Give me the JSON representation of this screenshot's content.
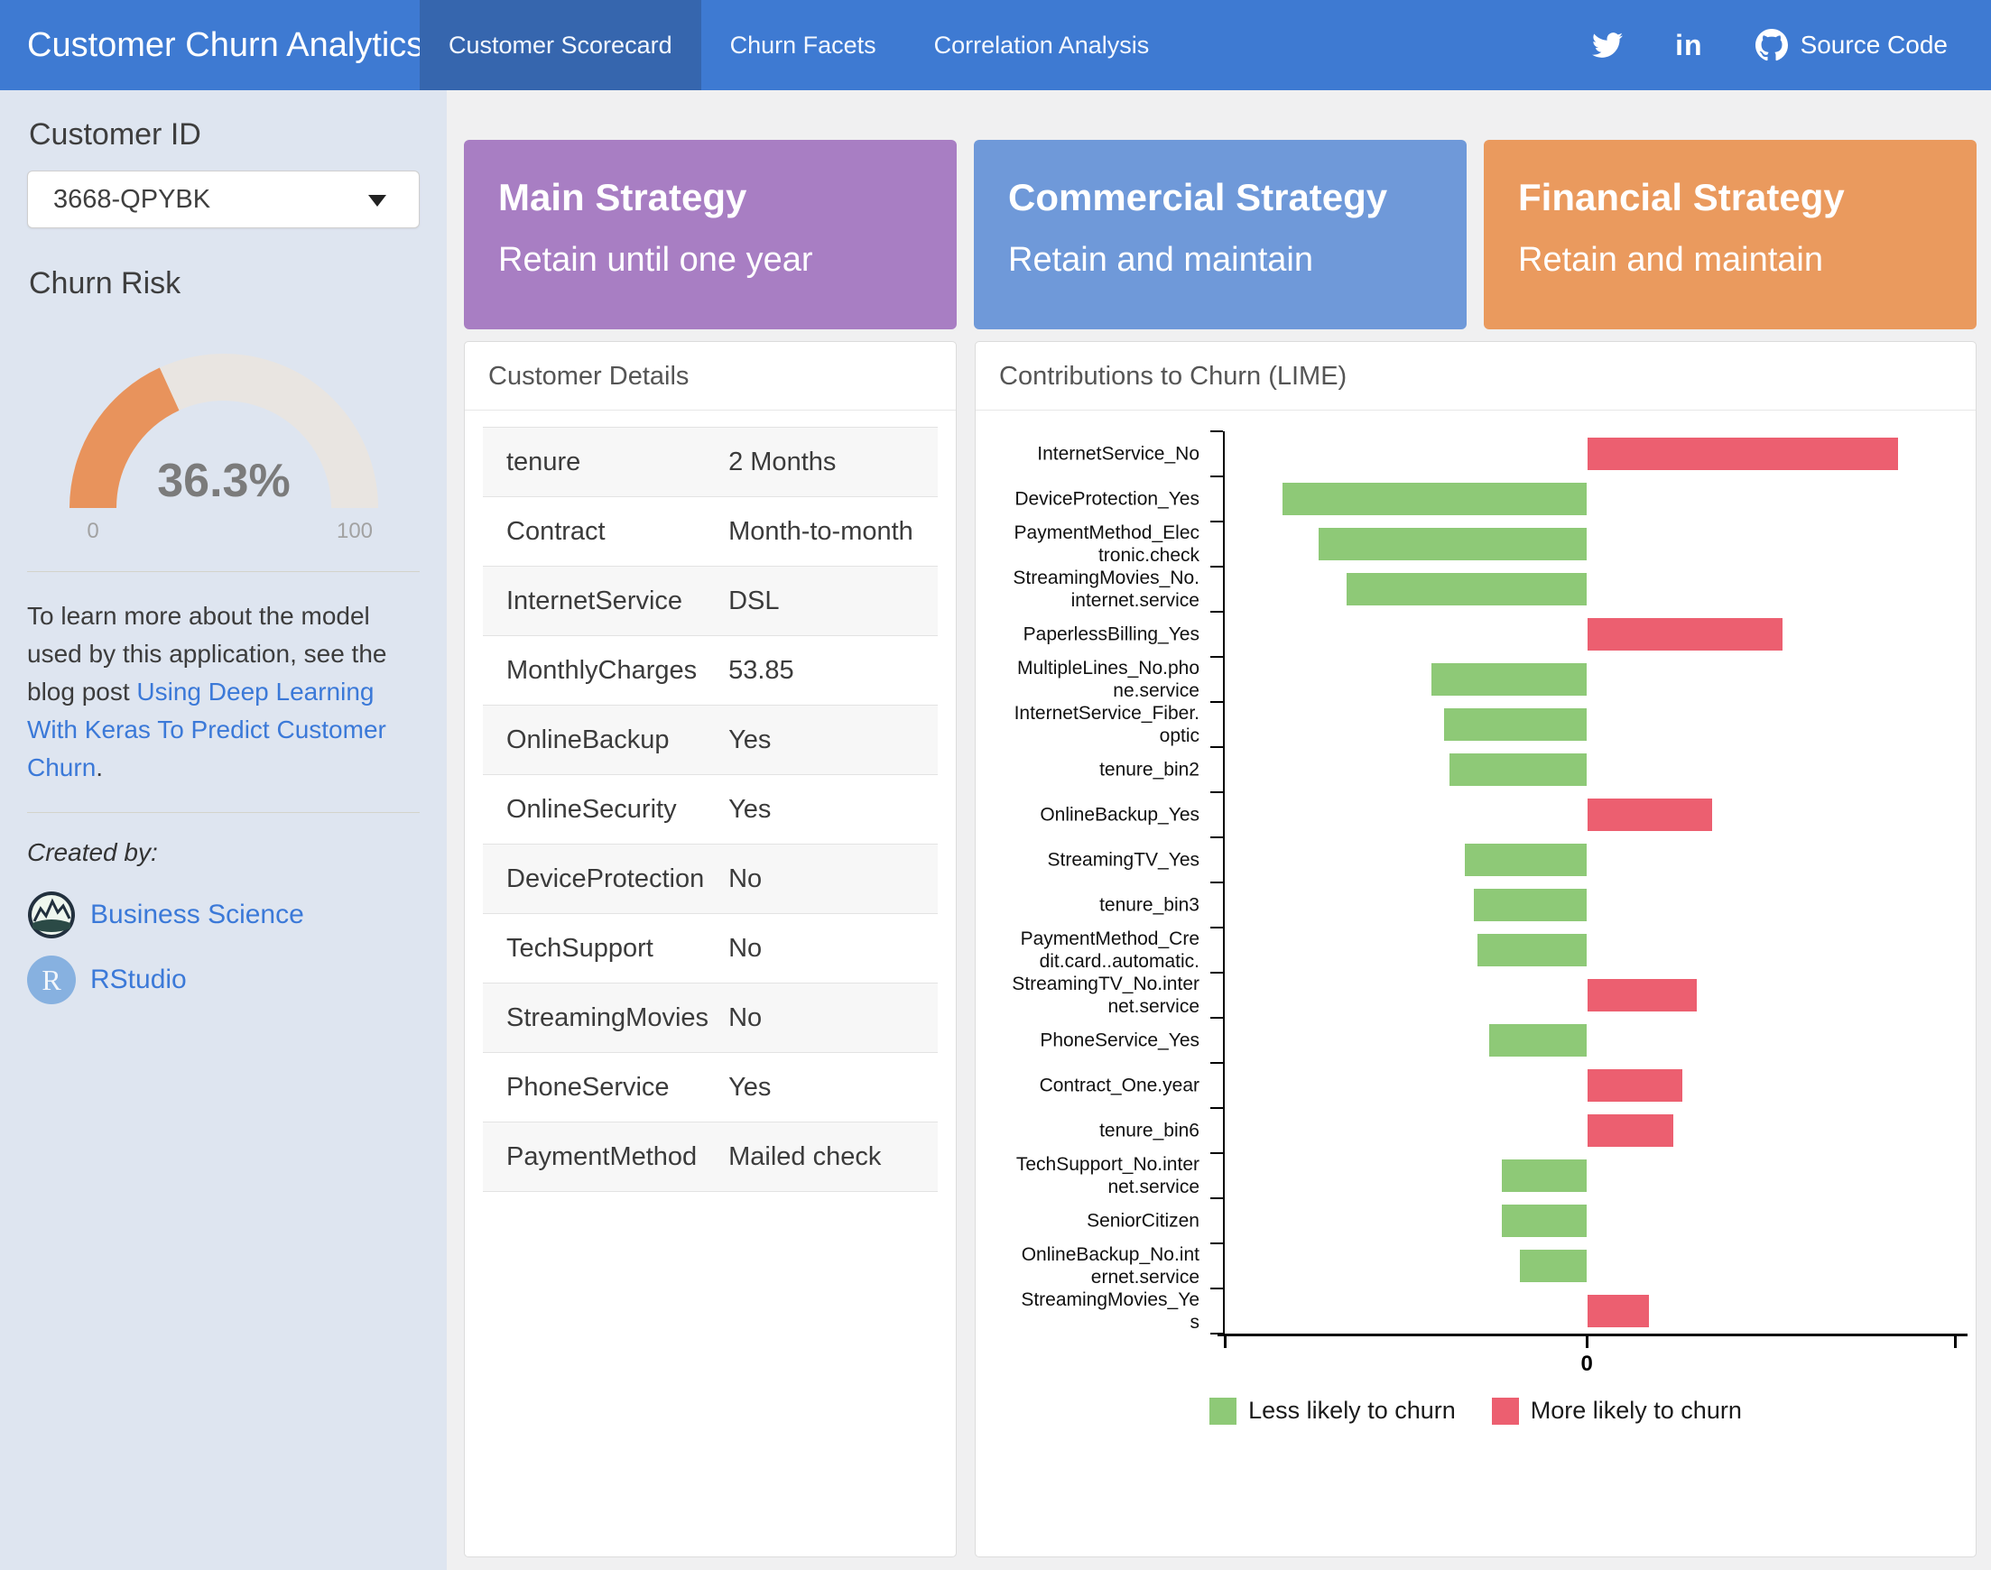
{
  "navbar": {
    "title": "Customer Churn Analytics",
    "tabs": [
      {
        "label": "Customer Scorecard",
        "active": true
      },
      {
        "label": "Churn Facets",
        "active": false
      },
      {
        "label": "Correlation Analysis",
        "active": false
      }
    ],
    "source_code_label": "Source Code",
    "colors": {
      "bar": "#3e7ad2",
      "active_tab": "#3666ae"
    }
  },
  "sidebar": {
    "customer_id_label": "Customer ID",
    "customer_id_value": "3668-QPYBK",
    "churn_risk_label": "Churn Risk",
    "gauge": {
      "value": 36.3,
      "display": "36.3%",
      "min_label": "0",
      "max_label": "100",
      "fill_color": "#e8935c",
      "track_color": "#e9e5e1"
    },
    "about": {
      "text_before": "To learn more about the model used by this application, see the blog post ",
      "link_text": "Using Deep Learning With Keras To Predict Customer Churn",
      "text_after": "."
    },
    "created_by_label": "Created by:",
    "credits": [
      {
        "name": "Business Science",
        "icon": "business-science-logo"
      },
      {
        "name": "RStudio",
        "icon": "rstudio-logo"
      }
    ],
    "link_color": "#3b79d8"
  },
  "strategies": [
    {
      "title": "Main Strategy",
      "subtitle": "Retain until one year",
      "color": "#a87ec3"
    },
    {
      "title": "Commercial Strategy",
      "subtitle": "Retain and maintain",
      "color": "#6f99d9"
    },
    {
      "title": "Financial Strategy",
      "subtitle": "Retain and maintain",
      "color": "#ea9a5e"
    }
  ],
  "customer_details": {
    "title": "Customer Details",
    "rows": [
      {
        "field": "tenure",
        "value": "2 Months"
      },
      {
        "field": "Contract",
        "value": "Month-to-month"
      },
      {
        "field": "InternetService",
        "value": "DSL"
      },
      {
        "field": "MonthlyCharges",
        "value": "53.85"
      },
      {
        "field": "OnlineBackup",
        "value": "Yes"
      },
      {
        "field": "OnlineSecurity",
        "value": "Yes"
      },
      {
        "field": "DeviceProtection",
        "value": "No"
      },
      {
        "field": "TechSupport",
        "value": "No"
      },
      {
        "field": "StreamingMovies",
        "value": "No"
      },
      {
        "field": "PhoneService",
        "value": "Yes"
      },
      {
        "field": "PaymentMethod",
        "value": "Mailed check"
      }
    ]
  },
  "lime_panel": {
    "title": "Contributions to Churn (LIME)"
  },
  "chart_data": {
    "type": "bar",
    "orientation": "horizontal",
    "title": "Contributions to Churn (LIME)",
    "categories": [
      "InternetService_No",
      "DeviceProtection_Yes",
      "PaymentMethod_Electronic.check",
      "StreamingMovies_No.internet.service",
      "PaperlessBilling_Yes",
      "MultipleLines_No.phone.service",
      "InternetService_Fiber.optic",
      "tenure_bin2",
      "OnlineBackup_Yes",
      "StreamingTV_Yes",
      "tenure_bin3",
      "PaymentMethod_Credit.card..automatic.",
      "StreamingTV_No.internet.service",
      "PhoneService_Yes",
      "Contract_One.year",
      "tenure_bin6",
      "TechSupport_No.internet.service",
      "SeniorCitizen",
      "OnlineBackup_No.internet.service",
      "StreamingMovies_Yes"
    ],
    "values": [
      0.102,
      -0.1,
      -0.088,
      -0.079,
      0.064,
      -0.051,
      -0.047,
      -0.045,
      0.041,
      -0.04,
      -0.037,
      -0.036,
      0.036,
      -0.032,
      0.031,
      0.028,
      -0.028,
      -0.028,
      -0.022,
      0.02
    ],
    "xlim": [
      -0.119,
      0.121
    ],
    "x_ticks": [
      {
        "value": 0,
        "label": "0"
      }
    ],
    "grid": false,
    "colors": {
      "negative": "#8ec977",
      "positive": "#ec5f70"
    },
    "legend_position": "bottom",
    "legend": [
      {
        "label": "Less likely to churn",
        "color": "#8ec977",
        "sign": "negative"
      },
      {
        "label": "More likely to churn",
        "color": "#ec5f70",
        "sign": "positive"
      }
    ]
  }
}
